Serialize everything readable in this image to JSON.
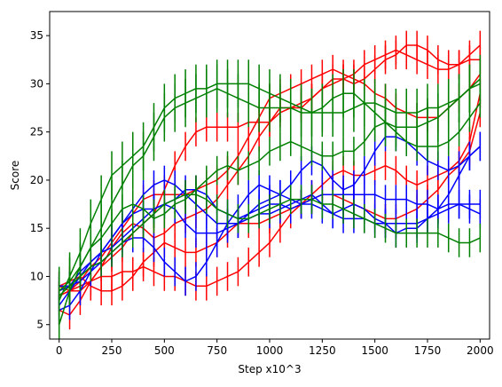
{
  "chart_data": {
    "type": "line",
    "xlabel": "Step x10^3",
    "ylabel": "Score",
    "xlim": [
      -45,
      2045
    ],
    "ylim": [
      3.5,
      37.5
    ],
    "xticks": [
      0,
      250,
      500,
      750,
      1000,
      1250,
      1500,
      1750,
      2000
    ],
    "yticks": [
      5,
      10,
      15,
      20,
      25,
      30,
      35
    ],
    "x": [
      0,
      50,
      100,
      150,
      200,
      250,
      300,
      350,
      400,
      450,
      500,
      550,
      600,
      650,
      700,
      750,
      800,
      850,
      900,
      950,
      1000,
      1050,
      1100,
      1150,
      1200,
      1250,
      1300,
      1350,
      1400,
      1450,
      1500,
      1550,
      1600,
      1650,
      1700,
      1750,
      1800,
      1850,
      1900,
      1950,
      2000
    ],
    "series": [
      {
        "color": "#ff0000",
        "values": [
          8.0,
          8.5,
          9.5,
          11.0,
          12.0,
          13.5,
          15.0,
          16.5,
          18.0,
          18.5,
          18.5,
          18.5,
          18.5,
          19.0,
          19.5,
          20.0,
          21.0,
          22.5,
          24.5,
          26.5,
          28.5,
          29.0,
          29.5,
          30.0,
          30.5,
          31.0,
          31.5,
          31.0,
          30.5,
          30.0,
          29.0,
          28.5,
          27.5,
          27.0,
          26.5,
          26.5,
          26.5,
          27.5,
          28.5,
          29.5,
          31.0
        ],
        "errors": [
          1.5,
          1.5,
          1.5,
          1.5,
          1.5,
          1.5,
          1.5,
          1.5,
          1.5,
          1.5,
          1.5,
          1.5,
          1.5,
          1.5,
          1.5,
          1.5,
          1.5,
          1.5,
          1.5,
          1.5,
          1.5,
          1.5,
          1.5,
          1.5,
          1.5,
          1.5,
          1.5,
          1.5,
          1.5,
          1.5,
          1.5,
          1.5,
          1.5,
          1.5,
          1.5,
          1.5,
          1.5,
          1.5,
          1.5,
          1.5,
          1.5
        ]
      },
      {
        "color": "#ff0000",
        "values": [
          9.0,
          8.5,
          8.5,
          9.5,
          11.0,
          13.0,
          14.5,
          15.5,
          15.0,
          14.0,
          14.5,
          15.5,
          16.0,
          16.5,
          17.0,
          18.0,
          19.5,
          21.0,
          22.5,
          24.5,
          26.0,
          27.5,
          27.5,
          28.0,
          28.5,
          29.5,
          30.0,
          30.5,
          31.0,
          32.0,
          32.5,
          33.0,
          33.5,
          33.0,
          32.5,
          32.0,
          31.5,
          31.5,
          32.0,
          32.5,
          32.5
        ],
        "errors": [
          1.5,
          1.5,
          1.5,
          1.5,
          1.5,
          1.5,
          1.5,
          1.5,
          1.5,
          1.5,
          1.5,
          1.5,
          1.5,
          1.5,
          1.5,
          1.5,
          1.5,
          1.5,
          1.5,
          1.5,
          1.5,
          1.5,
          1.5,
          1.5,
          1.5,
          1.5,
          1.5,
          1.5,
          1.5,
          1.5,
          1.5,
          1.5,
          1.5,
          1.5,
          1.5,
          1.5,
          1.5,
          1.5,
          1.5,
          1.5,
          1.5
        ]
      },
      {
        "color": "#ff0000",
        "values": [
          6.5,
          6.0,
          7.5,
          9.5,
          11.0,
          12.0,
          13.0,
          14.5,
          15.5,
          16.5,
          19.0,
          21.5,
          23.5,
          25.0,
          25.5,
          25.5,
          25.5,
          25.5,
          26.0,
          26.0,
          26.0,
          27.0,
          27.5,
          27.5,
          28.5,
          29.5,
          30.5,
          30.5,
          30.0,
          30.5,
          31.5,
          32.5,
          33.0,
          34.0,
          34.0,
          33.5,
          32.5,
          32.0,
          32.0,
          33.0,
          34.0
        ],
        "errors": [
          1.5,
          1.5,
          1.5,
          1.5,
          1.5,
          1.5,
          1.5,
          1.5,
          1.5,
          1.5,
          1.5,
          1.5,
          1.5,
          1.5,
          1.5,
          1.5,
          1.5,
          1.5,
          1.5,
          1.5,
          1.5,
          1.5,
          1.5,
          1.5,
          1.5,
          1.5,
          1.5,
          1.5,
          1.5,
          1.5,
          1.5,
          1.5,
          1.5,
          1.5,
          1.5,
          1.5,
          1.5,
          1.5,
          1.5,
          1.5,
          1.5
        ]
      },
      {
        "color": "#ff0000",
        "values": [
          8.0,
          8.5,
          9.0,
          9.5,
          10.0,
          10.0,
          10.5,
          10.5,
          11.0,
          10.5,
          10.0,
          10.0,
          9.5,
          9.0,
          9.0,
          9.5,
          10.0,
          10.5,
          11.5,
          12.5,
          13.5,
          15.0,
          16.5,
          17.5,
          18.5,
          19.5,
          20.5,
          21.0,
          20.5,
          20.5,
          21.0,
          21.5,
          21.0,
          20.0,
          19.5,
          20.0,
          20.5,
          21.0,
          22.0,
          24.0,
          29.0
        ],
        "errors": [
          1.5,
          1.5,
          1.5,
          1.5,
          1.5,
          1.5,
          1.5,
          1.5,
          1.5,
          1.5,
          1.5,
          1.5,
          1.5,
          1.5,
          1.5,
          1.5,
          1.5,
          1.5,
          1.5,
          1.5,
          1.5,
          1.5,
          1.5,
          1.5,
          1.5,
          1.5,
          1.5,
          1.5,
          1.5,
          1.5,
          1.5,
          1.5,
          1.5,
          1.5,
          1.5,
          1.5,
          1.5,
          1.5,
          1.5,
          1.5,
          1.5
        ]
      },
      {
        "color": "#ff0000",
        "values": [
          9.0,
          9.5,
          10.0,
          9.0,
          8.5,
          8.5,
          9.0,
          10.0,
          11.5,
          12.5,
          13.5,
          13.0,
          12.5,
          12.5,
          13.0,
          13.5,
          14.5,
          15.5,
          15.5,
          15.5,
          16.0,
          16.5,
          17.0,
          17.5,
          18.0,
          18.5,
          18.5,
          18.0,
          17.5,
          17.0,
          16.5,
          16.0,
          16.0,
          16.5,
          17.0,
          18.0,
          19.0,
          20.5,
          21.5,
          23.0,
          27.0
        ],
        "errors": [
          1.5,
          1.5,
          1.5,
          1.5,
          1.5,
          1.5,
          1.5,
          1.5,
          1.5,
          1.5,
          1.5,
          1.5,
          1.5,
          1.5,
          1.5,
          1.5,
          1.5,
          1.5,
          1.5,
          1.5,
          1.5,
          1.5,
          1.5,
          1.5,
          1.5,
          1.5,
          1.5,
          1.5,
          1.5,
          1.5,
          1.5,
          1.5,
          1.5,
          1.5,
          1.5,
          1.5,
          1.5,
          1.5,
          1.5,
          1.5,
          1.5
        ]
      },
      {
        "color": "#0000ff",
        "values": [
          7.0,
          8.5,
          10.0,
          11.5,
          12.5,
          13.0,
          14.0,
          15.0,
          16.0,
          17.0,
          17.5,
          18.0,
          19.0,
          19.0,
          18.5,
          17.0,
          16.5,
          16.0,
          16.5,
          17.0,
          17.5,
          17.5,
          17.0,
          17.5,
          18.0,
          18.5,
          18.5,
          18.5,
          18.5,
          18.5,
          18.5,
          18.0,
          18.0,
          18.0,
          17.5,
          17.5,
          17.0,
          17.5,
          17.5,
          17.0,
          16.5
        ],
        "errors": [
          1.5,
          1.5,
          1.5,
          1.5,
          1.5,
          1.5,
          1.5,
          1.5,
          1.5,
          1.5,
          1.5,
          1.5,
          1.5,
          1.5,
          1.5,
          1.5,
          1.5,
          1.5,
          1.5,
          1.5,
          1.5,
          1.5,
          1.5,
          1.5,
          1.5,
          1.5,
          1.5,
          1.5,
          1.5,
          1.5,
          1.5,
          1.5,
          1.5,
          1.5,
          1.5,
          1.5,
          1.5,
          1.5,
          1.5,
          1.5,
          1.5
        ]
      },
      {
        "color": "#0000ff",
        "values": [
          8.5,
          9.0,
          10.5,
          11.5,
          12.5,
          14.0,
          15.5,
          16.5,
          17.0,
          17.0,
          17.5,
          17.0,
          15.5,
          14.5,
          14.5,
          14.5,
          15.0,
          15.5,
          16.0,
          16.5,
          16.5,
          17.0,
          17.5,
          18.0,
          18.5,
          17.5,
          16.5,
          17.0,
          17.5,
          17.0,
          16.0,
          15.5,
          14.5,
          15.0,
          15.0,
          16.0,
          17.0,
          18.5,
          20.5,
          22.5,
          23.5
        ],
        "errors": [
          1.5,
          1.5,
          1.5,
          1.5,
          1.5,
          1.5,
          1.5,
          1.5,
          1.5,
          1.5,
          1.5,
          1.5,
          1.5,
          1.5,
          1.5,
          1.5,
          1.5,
          1.5,
          1.5,
          1.5,
          1.5,
          1.5,
          1.5,
          1.5,
          1.5,
          1.5,
          1.5,
          1.5,
          1.5,
          1.5,
          1.5,
          1.5,
          1.5,
          1.5,
          1.5,
          1.5,
          1.5,
          1.5,
          1.5,
          1.5,
          1.5
        ]
      },
      {
        "color": "#0000ff",
        "values": [
          6.5,
          7.0,
          8.5,
          10.5,
          12.5,
          14.0,
          15.5,
          17.0,
          18.5,
          19.5,
          20.0,
          19.5,
          18.5,
          17.5,
          16.5,
          15.5,
          15.5,
          15.5,
          16.5,
          17.5,
          18.0,
          18.5,
          19.5,
          21.0,
          22.0,
          21.5,
          20.0,
          19.0,
          19.5,
          21.0,
          23.0,
          24.5,
          24.5,
          24.0,
          23.0,
          22.0,
          21.5,
          21.0,
          21.5,
          22.5,
          23.5
        ],
        "errors": [
          1.5,
          1.5,
          1.5,
          1.5,
          1.5,
          1.5,
          1.5,
          1.5,
          1.5,
          1.5,
          1.5,
          1.5,
          1.5,
          1.5,
          1.5,
          1.5,
          1.5,
          1.5,
          1.5,
          1.5,
          1.5,
          1.5,
          1.5,
          1.5,
          1.5,
          1.5,
          1.5,
          1.5,
          1.5,
          1.5,
          1.5,
          1.5,
          1.5,
          1.5,
          1.5,
          1.5,
          1.5,
          1.5,
          1.5,
          1.5,
          1.5
        ]
      },
      {
        "color": "#0000ff",
        "values": [
          9.0,
          9.0,
          9.5,
          10.5,
          11.5,
          12.5,
          13.5,
          14.0,
          14.0,
          13.0,
          11.5,
          10.5,
          9.5,
          10.0,
          11.5,
          13.5,
          15.5,
          17.0,
          18.5,
          19.5,
          19.0,
          18.5,
          18.0,
          17.5,
          17.5,
          17.0,
          16.5,
          16.0,
          16.0,
          16.0,
          15.5,
          15.5,
          15.5,
          15.5,
          15.5,
          16.0,
          16.5,
          17.0,
          17.5,
          17.5,
          17.5
        ],
        "errors": [
          1.5,
          1.5,
          1.5,
          1.5,
          1.5,
          1.5,
          1.5,
          1.5,
          1.5,
          1.5,
          1.5,
          1.5,
          1.5,
          1.5,
          1.5,
          1.5,
          1.5,
          1.5,
          1.5,
          1.5,
          1.5,
          1.5,
          1.5,
          1.5,
          1.5,
          1.5,
          1.5,
          1.5,
          1.5,
          1.5,
          1.5,
          1.5,
          1.5,
          1.5,
          1.5,
          1.5,
          1.5,
          1.5,
          1.5,
          1.5,
          1.5
        ]
      },
      {
        "color": "#008000",
        "values": [
          7.5,
          10.0,
          12.5,
          15.5,
          18.0,
          20.5,
          21.5,
          22.5,
          23.5,
          25.5,
          27.5,
          28.5,
          29.0,
          29.5,
          29.5,
          30.0,
          30.0,
          30.0,
          30.0,
          29.5,
          29.0,
          28.5,
          28.0,
          27.5,
          27.0,
          27.0,
          27.0,
          27.0,
          27.5,
          28.0,
          28.0,
          27.5,
          27.0,
          27.0,
          27.0,
          27.5,
          27.5,
          28.0,
          28.5,
          29.5,
          30.5
        ],
        "errors": [
          2.5,
          2.5,
          2.5,
          2.5,
          2.5,
          2.5,
          2.5,
          2.5,
          2.5,
          2.5,
          2.5,
          2.5,
          2.5,
          2.5,
          2.5,
          2.5,
          2.5,
          2.5,
          2.5,
          2.5,
          2.5,
          2.5,
          2.5,
          2.5,
          2.5,
          2.5,
          2.5,
          2.5,
          2.5,
          2.5,
          2.5,
          2.5,
          2.5,
          2.5,
          2.5,
          2.5,
          2.5,
          2.5,
          2.5,
          2.5,
          2.5
        ]
      },
      {
        "color": "#008000",
        "values": [
          8.5,
          9.5,
          11.0,
          13.0,
          15.0,
          17.5,
          19.5,
          21.5,
          22.5,
          24.5,
          26.5,
          27.5,
          28.0,
          28.5,
          29.0,
          29.5,
          29.0,
          28.5,
          28.0,
          27.5,
          27.5,
          27.5,
          27.5,
          27.0,
          27.0,
          27.5,
          28.5,
          29.0,
          29.0,
          28.0,
          27.0,
          26.0,
          25.5,
          25.5,
          25.5,
          26.0,
          26.5,
          27.5,
          28.5,
          29.5,
          30.0
        ],
        "errors": [
          2.5,
          2.5,
          2.5,
          2.5,
          2.5,
          2.5,
          2.5,
          2.5,
          2.5,
          2.5,
          2.5,
          2.5,
          2.5,
          2.5,
          2.5,
          2.5,
          2.5,
          2.5,
          2.5,
          2.5,
          2.5,
          2.5,
          2.5,
          2.5,
          2.5,
          2.5,
          2.5,
          2.5,
          2.5,
          2.5,
          2.5,
          2.5,
          2.5,
          2.5,
          2.5,
          2.5,
          2.5,
          2.5,
          2.5,
          2.5,
          2.5
        ]
      },
      {
        "color": "#008000",
        "values": [
          5.0,
          8.5,
          11.0,
          13.0,
          14.0,
          15.5,
          17.0,
          17.5,
          17.0,
          16.0,
          16.5,
          17.5,
          18.0,
          19.0,
          20.0,
          21.0,
          21.5,
          21.0,
          21.5,
          22.0,
          23.0,
          23.5,
          24.0,
          23.5,
          23.0,
          22.5,
          22.5,
          23.0,
          23.0,
          24.0,
          25.5,
          26.0,
          25.0,
          24.0,
          23.5,
          23.5,
          23.5,
          24.0,
          25.0,
          26.5,
          28.0
        ],
        "errors": [
          1.5,
          1.5,
          1.5,
          1.5,
          1.5,
          1.5,
          1.5,
          1.5,
          1.5,
          1.5,
          1.5,
          1.5,
          1.5,
          1.5,
          1.5,
          1.5,
          1.5,
          1.5,
          1.5,
          1.5,
          1.5,
          1.5,
          1.5,
          1.5,
          1.5,
          1.5,
          1.5,
          1.5,
          1.5,
          1.5,
          1.5,
          1.5,
          1.5,
          1.5,
          1.5,
          1.5,
          1.5,
          1.5,
          1.5,
          1.5,
          1.5
        ]
      },
      {
        "color": "#008000",
        "values": [
          8.0,
          9.0,
          10.0,
          11.0,
          11.5,
          12.5,
          13.5,
          14.5,
          15.5,
          16.5,
          17.5,
          18.0,
          18.5,
          18.5,
          18.0,
          17.0,
          16.5,
          16.0,
          16.0,
          16.5,
          17.0,
          17.5,
          18.0,
          18.0,
          18.0,
          17.5,
          17.5,
          17.0,
          16.5,
          16.0,
          15.5,
          15.0,
          14.5,
          14.5,
          14.5,
          14.5,
          14.5,
          14.0,
          13.5,
          13.5,
          14.0
        ],
        "errors": [
          1.5,
          1.5,
          1.5,
          1.5,
          1.5,
          1.5,
          1.5,
          1.5,
          1.5,
          1.5,
          1.5,
          1.5,
          1.5,
          1.5,
          1.5,
          1.5,
          1.5,
          1.5,
          1.5,
          1.5,
          1.5,
          1.5,
          1.5,
          1.5,
          1.5,
          1.5,
          1.5,
          1.5,
          1.5,
          1.5,
          1.5,
          1.5,
          1.5,
          1.5,
          1.5,
          1.5,
          1.5,
          1.5,
          1.5,
          1.5,
          1.5
        ]
      }
    ]
  }
}
